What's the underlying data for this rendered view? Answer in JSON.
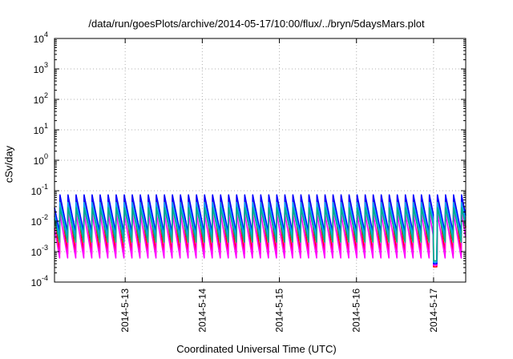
{
  "chart_data": {
    "type": "line",
    "title": "/data/run/goesPlots/archive/2014-05-17/10:00/flux/../bryn/5daysMars.plot",
    "xlabel": "Coordinated Universal Time (UTC)",
    "ylabel": "cSv/day",
    "y_scale": "log",
    "grid": true,
    "legend": "none",
    "ylim": [
      0.0001,
      10000
    ],
    "xlim": [
      "2014-05-12T02:00",
      "2014-05-17T10:00"
    ],
    "y_ticks": [
      {
        "value": 0.0001,
        "base": "10",
        "exp": "-4"
      },
      {
        "value": 0.001,
        "base": "10",
        "exp": "-3"
      },
      {
        "value": 0.01,
        "base": "10",
        "exp": "-2"
      },
      {
        "value": 0.1,
        "base": "10",
        "exp": "-1"
      },
      {
        "value": 1,
        "base": "10",
        "exp": "0"
      },
      {
        "value": 10,
        "base": "10",
        "exp": "1"
      },
      {
        "value": 100,
        "base": "10",
        "exp": "2"
      },
      {
        "value": 1000,
        "base": "10",
        "exp": "3"
      },
      {
        "value": 10000,
        "base": "10",
        "exp": "4"
      }
    ],
    "x_ticks": [
      {
        "value": "2014-05-13T00:00",
        "label": "2014-5-13"
      },
      {
        "value": "2014-05-14T00:00",
        "label": "2014-5-14"
      },
      {
        "value": "2014-05-15T00:00",
        "label": "2014-5-15"
      },
      {
        "value": "2014-05-16T00:00",
        "label": "2014-5-16"
      },
      {
        "value": "2014-05-17T00:00",
        "label": "2014-5-17"
      }
    ],
    "cycle_hours": 2.5,
    "series": [
      {
        "color": "#ff0000",
        "peak": 0.075,
        "trough": 0.0008
      },
      {
        "color": "#ff00ff",
        "peak": 0.02,
        "trough": 0.0006
      },
      {
        "color": "#0000ff",
        "peak": 0.08,
        "trough": 0.004
      },
      {
        "color": "#00a0ff",
        "peak": 0.045,
        "trough": 0.003
      },
      {
        "color": "#00b08a",
        "peak": 0.03,
        "trough": 0.002
      }
    ],
    "events": [
      {
        "start": "2014-05-17T00:00",
        "end": "2014-05-17T01:00",
        "value": 0.0005
      }
    ]
  }
}
